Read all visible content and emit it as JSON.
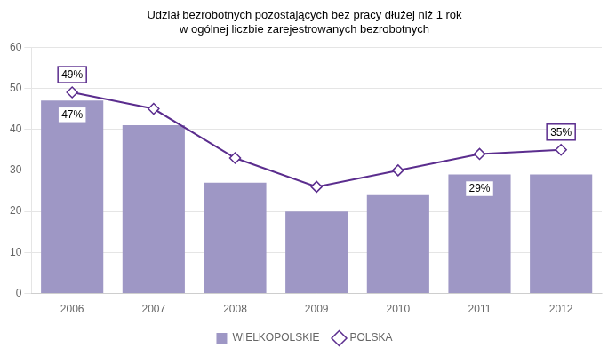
{
  "chart_data": {
    "type": "bar",
    "title": [
      "Udział bezrobotnych pozostających bez pracy dłużej niż 1 rok",
      "w ogólnej liczbie zarejestrowanych bezrobotnych"
    ],
    "categories": [
      "2006",
      "2007",
      "2008",
      "2009",
      "2010",
      "2011",
      "2012"
    ],
    "series": [
      {
        "name": "WIELKOPOLSKIE",
        "type": "bar",
        "color": "#9E97C5",
        "values": [
          47,
          41,
          27,
          20,
          24,
          29,
          29
        ]
      },
      {
        "name": "POLSKA",
        "type": "line",
        "color": "#5B2D8E",
        "marker": "diamond",
        "values": [
          49,
          45,
          33,
          26,
          30,
          34,
          35
        ]
      }
    ],
    "ylim": [
      0,
      60
    ],
    "yticks": [
      0,
      10,
      20,
      30,
      40,
      50,
      60
    ],
    "grid": true,
    "legend": "bottom",
    "annotations": [
      {
        "text": "49%",
        "x": "2006",
        "y": 49,
        "series": "POLSKA"
      },
      {
        "text": "47%",
        "x": "2006",
        "y": 47,
        "series": "WIELKOPOLSKIE"
      },
      {
        "text": "29%",
        "x": "2011",
        "y": 29,
        "series": "WIELKOPOLSKIE"
      },
      {
        "text": "35%",
        "x": "2012",
        "y": 35,
        "series": "POLSKA"
      }
    ]
  }
}
